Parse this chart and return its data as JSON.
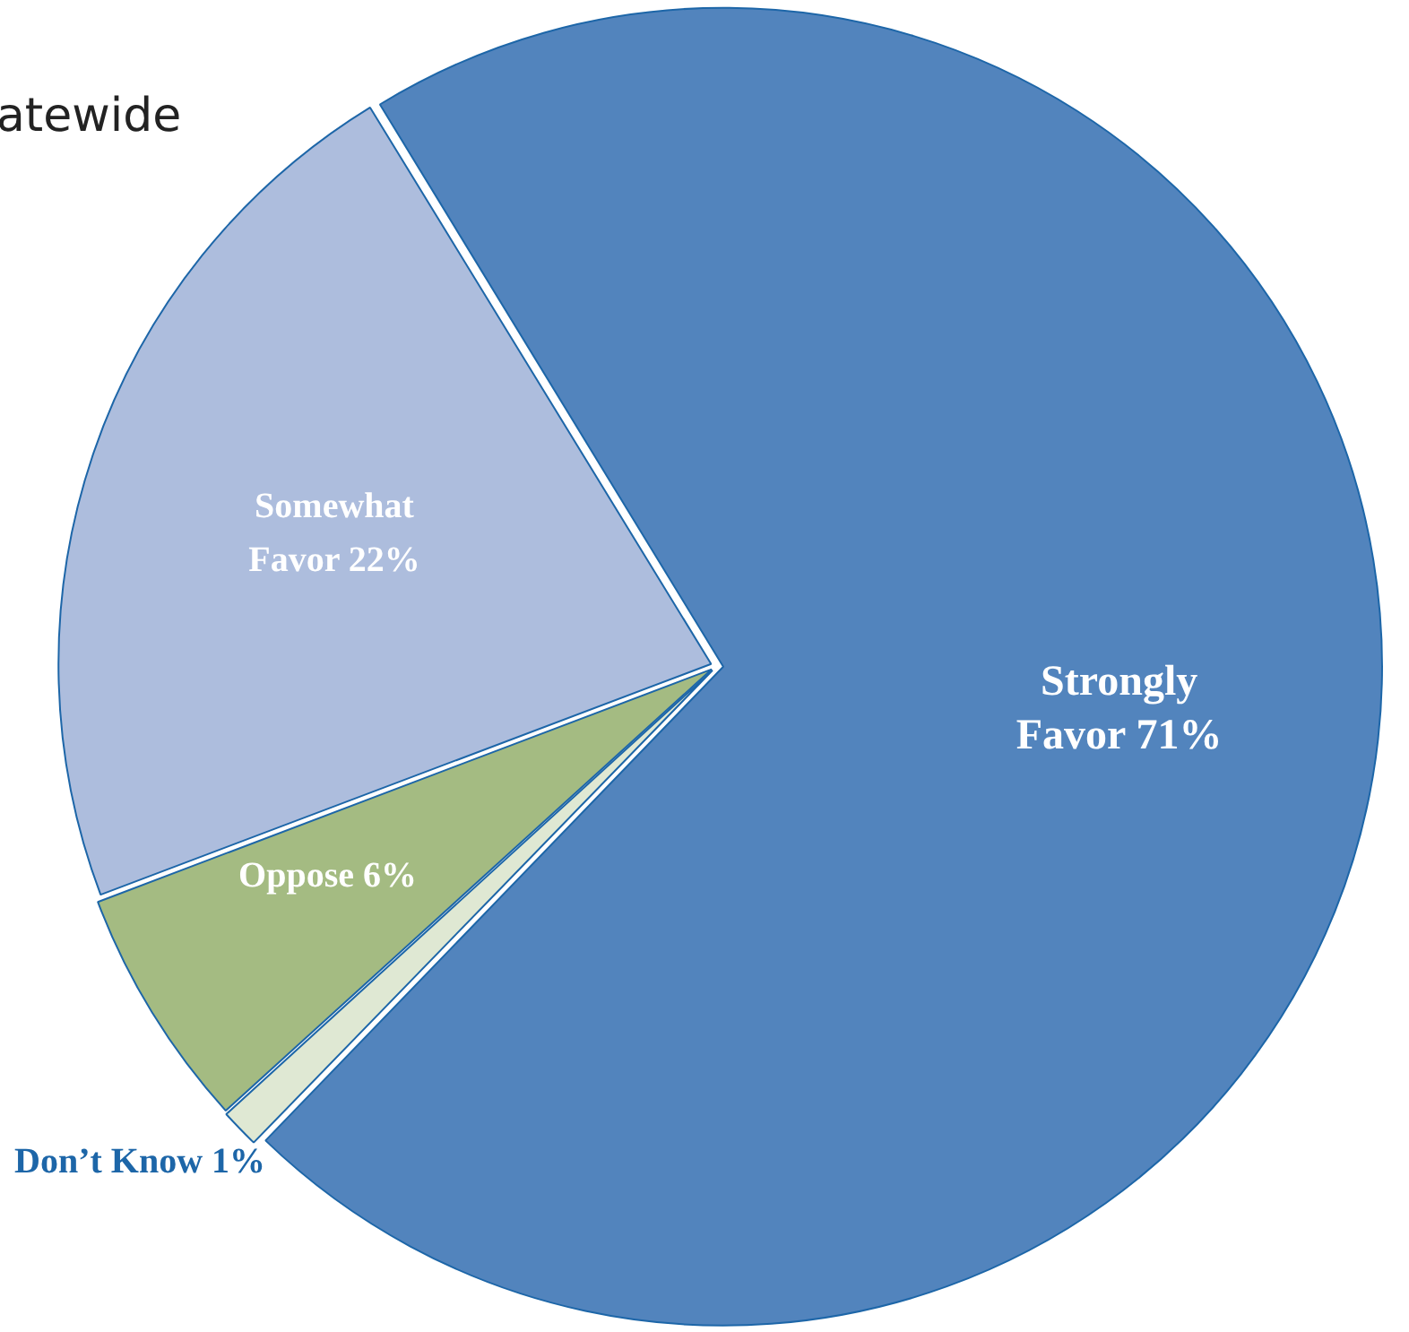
{
  "chart_data": {
    "type": "pie",
    "title": "atewide",
    "categories": [
      "Strongly Favor",
      "Don’t Know",
      "Oppose",
      "Somewhat Favor"
    ],
    "values": [
      71,
      1,
      6,
      22
    ],
    "value_labels": [
      "71%",
      "1%",
      "6%",
      "22%"
    ],
    "colors": [
      "#5284bd",
      "#dfe8d3",
      "#a4bb82",
      "#adbddd"
    ],
    "legend": false
  }
}
